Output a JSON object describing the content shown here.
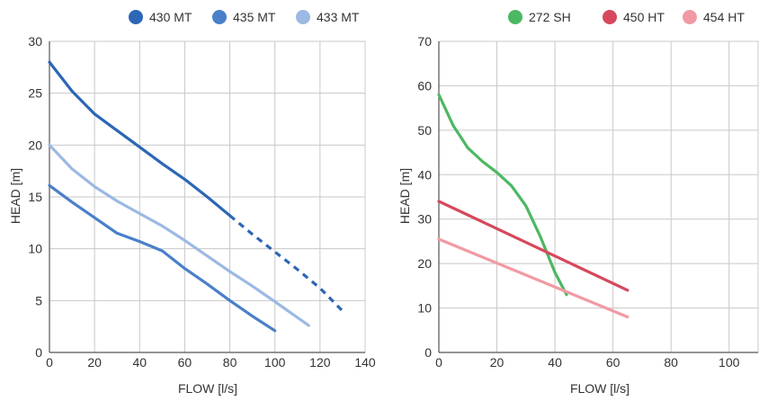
{
  "chart_data": [
    {
      "type": "line",
      "xlabel": "FLOW [l/s]",
      "ylabel": "HEAD [m]",
      "xlim": [
        0,
        140
      ],
      "ylim": [
        0,
        30
      ],
      "xticks": [
        "0",
        "20",
        "40",
        "60",
        "80",
        "100",
        "120",
        "140"
      ],
      "yticks": [
        "0",
        "5",
        "10",
        "15",
        "20",
        "25",
        "30"
      ],
      "grid": true,
      "legend": "top-right",
      "series": [
        {
          "name": "430 MT",
          "color": "#2c66b5",
          "x": [
            0,
            10,
            20,
            30,
            40,
            50,
            60,
            70,
            80
          ],
          "y": [
            28,
            25.2,
            23,
            21.4,
            19.8,
            18.2,
            16.7,
            15,
            13.2
          ],
          "dashed_x": [
            80,
            90,
            100,
            110,
            120,
            130
          ],
          "dashed_y": [
            13.2,
            11.4,
            9.7,
            8.0,
            6.2,
            4.0
          ]
        },
        {
          "name": "435 MT",
          "color": "#4a7fca",
          "x": [
            0,
            10,
            20,
            30,
            40,
            50,
            60,
            70,
            80,
            90,
            100
          ],
          "y": [
            16.1,
            14.5,
            13,
            11.5,
            10.7,
            9.8,
            8.1,
            6.6,
            5.0,
            3.5,
            2.1
          ]
        },
        {
          "name": "433 MT",
          "color": "#9cb9e3",
          "x": [
            0,
            10,
            20,
            30,
            40,
            50,
            60,
            70,
            80,
            90,
            100,
            115
          ],
          "y": [
            20,
            17.7,
            16,
            14.6,
            13.4,
            12.2,
            10.8,
            9.3,
            7.8,
            6.4,
            4.9,
            2.6
          ]
        }
      ]
    },
    {
      "type": "line",
      "xlabel": "FLOW [l/s]",
      "ylabel": "HEAD [m]",
      "xlim": [
        0,
        110
      ],
      "ylim": [
        0,
        70
      ],
      "xticks": [
        "0",
        "20",
        "40",
        "60",
        "80",
        "100"
      ],
      "yticks": [
        "0",
        "10",
        "20",
        "30",
        "40",
        "50",
        "60",
        "70"
      ],
      "grid": true,
      "legend": "top-right",
      "series": [
        {
          "name": "272 SH",
          "color": "#4cb862",
          "x": [
            0,
            5,
            10,
            15,
            20,
            25,
            30,
            35,
            40,
            44
          ],
          "y": [
            58,
            51,
            46,
            43,
            40.5,
            37.5,
            33,
            26,
            18,
            13
          ]
        },
        {
          "name": "450 HT",
          "color": "#d6485c",
          "x": [
            0,
            65
          ],
          "y": [
            34,
            14
          ]
        },
        {
          "name": "454 HT",
          "color": "#f19aa3",
          "x": [
            0,
            65
          ],
          "y": [
            25.5,
            8
          ]
        }
      ]
    }
  ]
}
